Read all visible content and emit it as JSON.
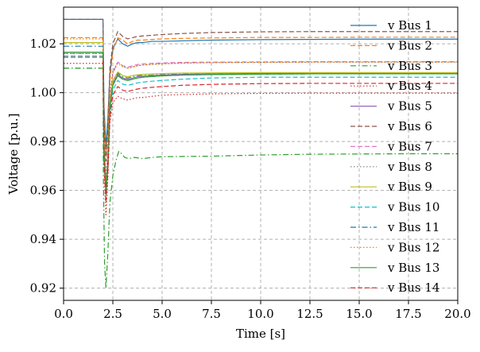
{
  "chart_data": {
    "type": "line",
    "xlabel": "Time [s]",
    "ylabel": "Voltage [p.u.]",
    "xlim": [
      0,
      20
    ],
    "ylim": [
      0.915,
      1.035
    ],
    "xticks": [
      0,
      2.5,
      5,
      7.5,
      10,
      12.5,
      15,
      17.5,
      20
    ],
    "xtick_labels": [
      "0.0",
      "2.5",
      "5.0",
      "7.5",
      "10.0",
      "12.5",
      "15.0",
      "17.5",
      "20.0"
    ],
    "yticks": [
      0.92,
      0.94,
      0.96,
      0.98,
      1.0,
      1.02
    ],
    "ytick_labels": [
      "0.92",
      "0.94",
      "0.96",
      "0.98",
      "1.00",
      "1.02"
    ],
    "grid": true,
    "legend_position": "top-right",
    "x": [
      0,
      2.0,
      2.05,
      2.15,
      2.25,
      2.35,
      2.5,
      2.75,
      3.0,
      3.25,
      3.5,
      3.75,
      4.0,
      4.5,
      5.0,
      6.0,
      7.5,
      10.0,
      12.5,
      15.0,
      17.5,
      20.0
    ],
    "series": [
      {
        "name": "v Bus 1",
        "color": "#1f77b4",
        "dash": "solid",
        "values": [
          1.03,
          1.03,
          0.995,
          0.978,
          0.99,
          1.008,
          1.018,
          1.022,
          1.02,
          1.019,
          1.02,
          1.0205,
          1.0205,
          1.021,
          1.021,
          1.0212,
          1.0215,
          1.0217,
          1.0218,
          1.0219,
          1.0219,
          1.0219
        ]
      },
      {
        "name": "v Bus 2",
        "color": "#ff7f0e",
        "dash": "dashed",
        "values": [
          1.0225,
          1.0225,
          0.99,
          0.975,
          0.985,
          1.005,
          1.017,
          1.0225,
          1.0215,
          1.02,
          1.021,
          1.0215,
          1.0215,
          1.0218,
          1.022,
          1.0222,
          1.0224,
          1.0226,
          1.0226,
          1.0227,
          1.0227,
          1.0227
        ]
      },
      {
        "name": "v Bus 3",
        "color": "#2ca02c",
        "dash": "dashdot",
        "values": [
          1.01,
          1.01,
          0.975,
          0.958,
          0.972,
          0.995,
          1.005,
          1.008,
          1.0065,
          1.006,
          1.0065,
          1.007,
          1.007,
          1.0072,
          1.0074,
          1.0076,
          1.0078,
          1.008,
          1.008,
          1.008,
          1.008,
          1.008
        ]
      },
      {
        "name": "v Bus 4",
        "color": "#d62728",
        "dash": "dotted",
        "values": [
          1.012,
          1.012,
          0.97,
          0.95,
          0.965,
          0.988,
          0.996,
          0.9985,
          0.9975,
          0.997,
          0.9975,
          0.998,
          0.998,
          0.9985,
          0.999,
          0.9992,
          0.9995,
          0.9997,
          0.9998,
          0.9998,
          0.9998,
          0.9998
        ]
      },
      {
        "name": "v Bus 5",
        "color": "#9467bd",
        "dash": "solid",
        "values": [
          1.0165,
          1.0165,
          0.975,
          0.958,
          0.97,
          0.993,
          1.004,
          1.0075,
          1.006,
          1.0055,
          1.006,
          1.0065,
          1.0068,
          1.007,
          1.0072,
          1.0075,
          1.0077,
          1.0079,
          1.008,
          1.008,
          1.008,
          1.008
        ]
      },
      {
        "name": "v Bus 6",
        "color": "#8c564b",
        "dash": "dashed",
        "values": [
          1.03,
          1.03,
          0.99,
          0.972,
          0.985,
          1.01,
          1.02,
          1.025,
          1.023,
          1.022,
          1.0225,
          1.023,
          1.0232,
          1.0235,
          1.0238,
          1.0242,
          1.0246,
          1.0249,
          1.025,
          1.025,
          1.025,
          1.025
        ]
      },
      {
        "name": "v Bus 7",
        "color": "#e377c2",
        "dash": "dashed",
        "values": [
          1.016,
          1.016,
          0.98,
          0.962,
          0.975,
          0.998,
          1.008,
          1.0125,
          1.011,
          1.0105,
          1.011,
          1.0115,
          1.0118,
          1.012,
          1.0122,
          1.0124,
          1.0125,
          1.0126,
          1.0127,
          1.0127,
          1.0127,
          1.0127
        ]
      },
      {
        "name": "v Bus 8",
        "color": "#7f7f7f",
        "dash": "dotted",
        "values": [
          1.016,
          1.016,
          0.982,
          0.965,
          0.978,
          1.0,
          1.009,
          1.0125,
          1.011,
          1.01,
          1.0105,
          1.011,
          1.0113,
          1.0116,
          1.0118,
          1.0121,
          1.0123,
          1.0124,
          1.0125,
          1.0125,
          1.0125,
          1.0125
        ]
      },
      {
        "name": "v Bus 9",
        "color": "#bcbd22",
        "dash": "solid",
        "values": [
          1.0205,
          1.0205,
          0.978,
          0.96,
          0.972,
          0.995,
          1.005,
          1.0085,
          1.007,
          1.0065,
          1.007,
          1.0073,
          1.0075,
          1.0077,
          1.0078,
          1.008,
          1.0081,
          1.0082,
          1.0082,
          1.0082,
          1.0082,
          1.0082
        ]
      },
      {
        "name": "v Bus 10",
        "color": "#17becf",
        "dash": "dashed",
        "values": [
          1.015,
          1.015,
          0.975,
          0.958,
          0.97,
          0.992,
          1.001,
          1.005,
          1.0035,
          1.003,
          1.0035,
          1.004,
          1.0043,
          1.0047,
          1.005,
          1.0055,
          1.006,
          1.0063,
          1.0063,
          1.0063,
          1.0063,
          1.0063
        ]
      },
      {
        "name": "v Bus 11",
        "color": "#1f77b4",
        "dash": "dashdot",
        "values": [
          1.019,
          1.019,
          0.978,
          0.96,
          0.972,
          0.994,
          1.003,
          1.007,
          1.0055,
          1.005,
          1.0055,
          1.006,
          1.0063,
          1.0066,
          1.0069,
          1.0072,
          1.0074,
          1.0076,
          1.0077,
          1.0077,
          1.0077,
          1.0077
        ]
      },
      {
        "name": "v Bus 12",
        "color": "#ff7f0e",
        "dash": "dotted",
        "values": [
          1.022,
          1.022,
          0.98,
          0.962,
          0.975,
          0.998,
          1.008,
          1.012,
          1.0105,
          1.01,
          1.0105,
          1.011,
          1.0113,
          1.0116,
          1.0118,
          1.0121,
          1.0123,
          1.0124,
          1.0125,
          1.0125,
          1.0125,
          1.0125
        ]
      },
      {
        "name": "v Bus 13",
        "color": "#2ca02c",
        "dash": "solid",
        "values": [
          1.0165,
          1.0165,
          0.978,
          0.96,
          0.972,
          0.994,
          1.003,
          1.007,
          1.0055,
          1.005,
          1.0055,
          1.006,
          1.0063,
          1.0066,
          1.0069,
          1.0072,
          1.0074,
          1.0076,
          1.0077,
          1.0077,
          1.0077,
          1.0077
        ]
      },
      {
        "name": "v Bus 14",
        "color": "#d62728",
        "dash": "dashed",
        "values": [
          1.0145,
          1.0145,
          0.972,
          0.955,
          0.968,
          0.99,
          0.999,
          1.0025,
          1.001,
          1.0005,
          1.001,
          1.0015,
          1.0018,
          1.0022,
          1.0025,
          1.003,
          1.0034,
          1.0037,
          1.0038,
          1.0038,
          1.0038,
          1.0038
        ]
      }
    ],
    "extra_trace": {
      "name_hidden": true,
      "color": "#2ca02c",
      "dash": "dashdot",
      "x": [
        0,
        2.0,
        2.02,
        2.08,
        2.15,
        2.25,
        2.35,
        2.5,
        2.65,
        2.8,
        2.95,
        3.1,
        3.3,
        3.6,
        4.0,
        4.5,
        5.0,
        7.5,
        10.0,
        12.5,
        15.0,
        17.5,
        20.0
      ],
      "values": [
        1.01,
        1.01,
        0.965,
        0.93,
        0.92,
        0.935,
        0.955,
        0.966,
        0.972,
        0.976,
        0.975,
        0.9735,
        0.973,
        0.9735,
        0.973,
        0.9735,
        0.9738,
        0.974,
        0.9745,
        0.9748,
        0.9749,
        0.975,
        0.975
      ]
    }
  }
}
